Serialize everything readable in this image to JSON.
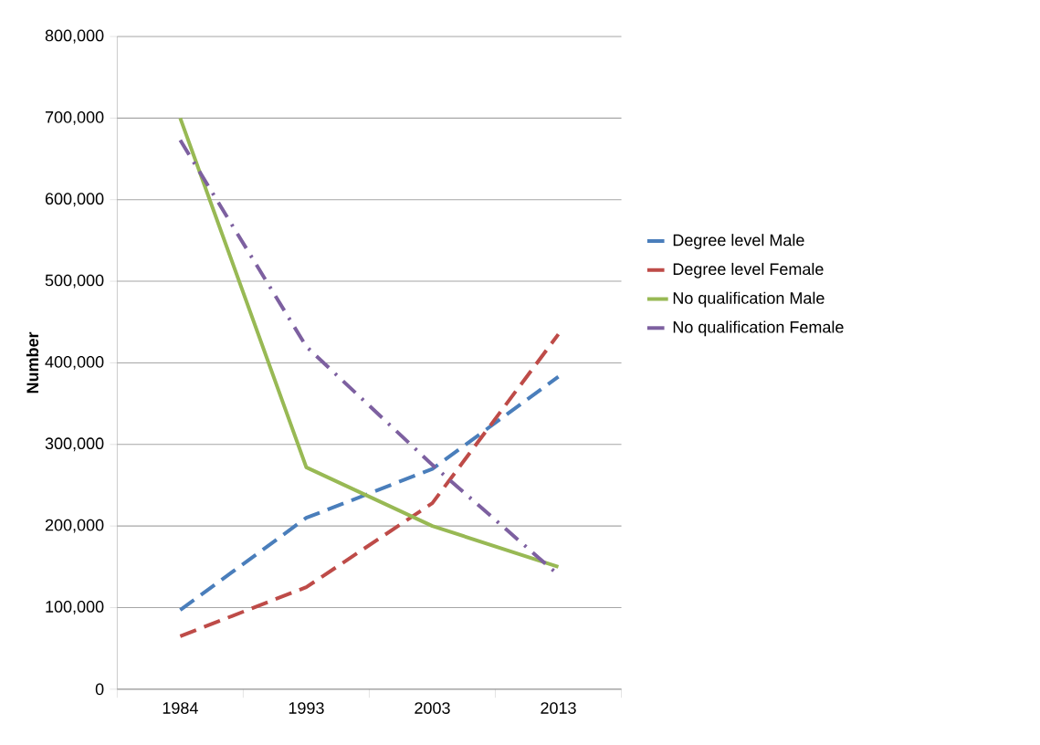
{
  "chart_data": {
    "type": "line",
    "ylabel": "Number",
    "categories": [
      "1984",
      "1993",
      "2003",
      "2013"
    ],
    "ylim": [
      0,
      800000
    ],
    "yticks": [
      {
        "value": 0,
        "label": "0"
      },
      {
        "value": 100000,
        "label": "100,000"
      },
      {
        "value": 200000,
        "label": "200,000"
      },
      {
        "value": 300000,
        "label": "300,000"
      },
      {
        "value": 400000,
        "label": "400,000"
      },
      {
        "value": 500000,
        "label": "500,000"
      },
      {
        "value": 600000,
        "label": "600,000"
      },
      {
        "value": 700000,
        "label": "700,000"
      },
      {
        "value": 800000,
        "label": "800,000"
      }
    ],
    "grid": "y",
    "legend": "right",
    "marker": "none",
    "series": [
      {
        "name": "Degree level Male",
        "color": "#4a7ebb",
        "line_style": "dashed",
        "values": [
          97000,
          210000,
          270000,
          383000
        ]
      },
      {
        "name": "Degree level Female",
        "color": "#be4b48",
        "line_style": "dashed",
        "values": [
          65000,
          125000,
          228000,
          435000
        ]
      },
      {
        "name": "No qualification Male",
        "color": "#98b954",
        "line_style": "solid",
        "values": [
          700000,
          272000,
          200000,
          150000
        ]
      },
      {
        "name": "No qualification Female",
        "color": "#7d60a0",
        "line_style": "dotted",
        "values": [
          673000,
          420000,
          275000,
          140000
        ]
      }
    ]
  }
}
